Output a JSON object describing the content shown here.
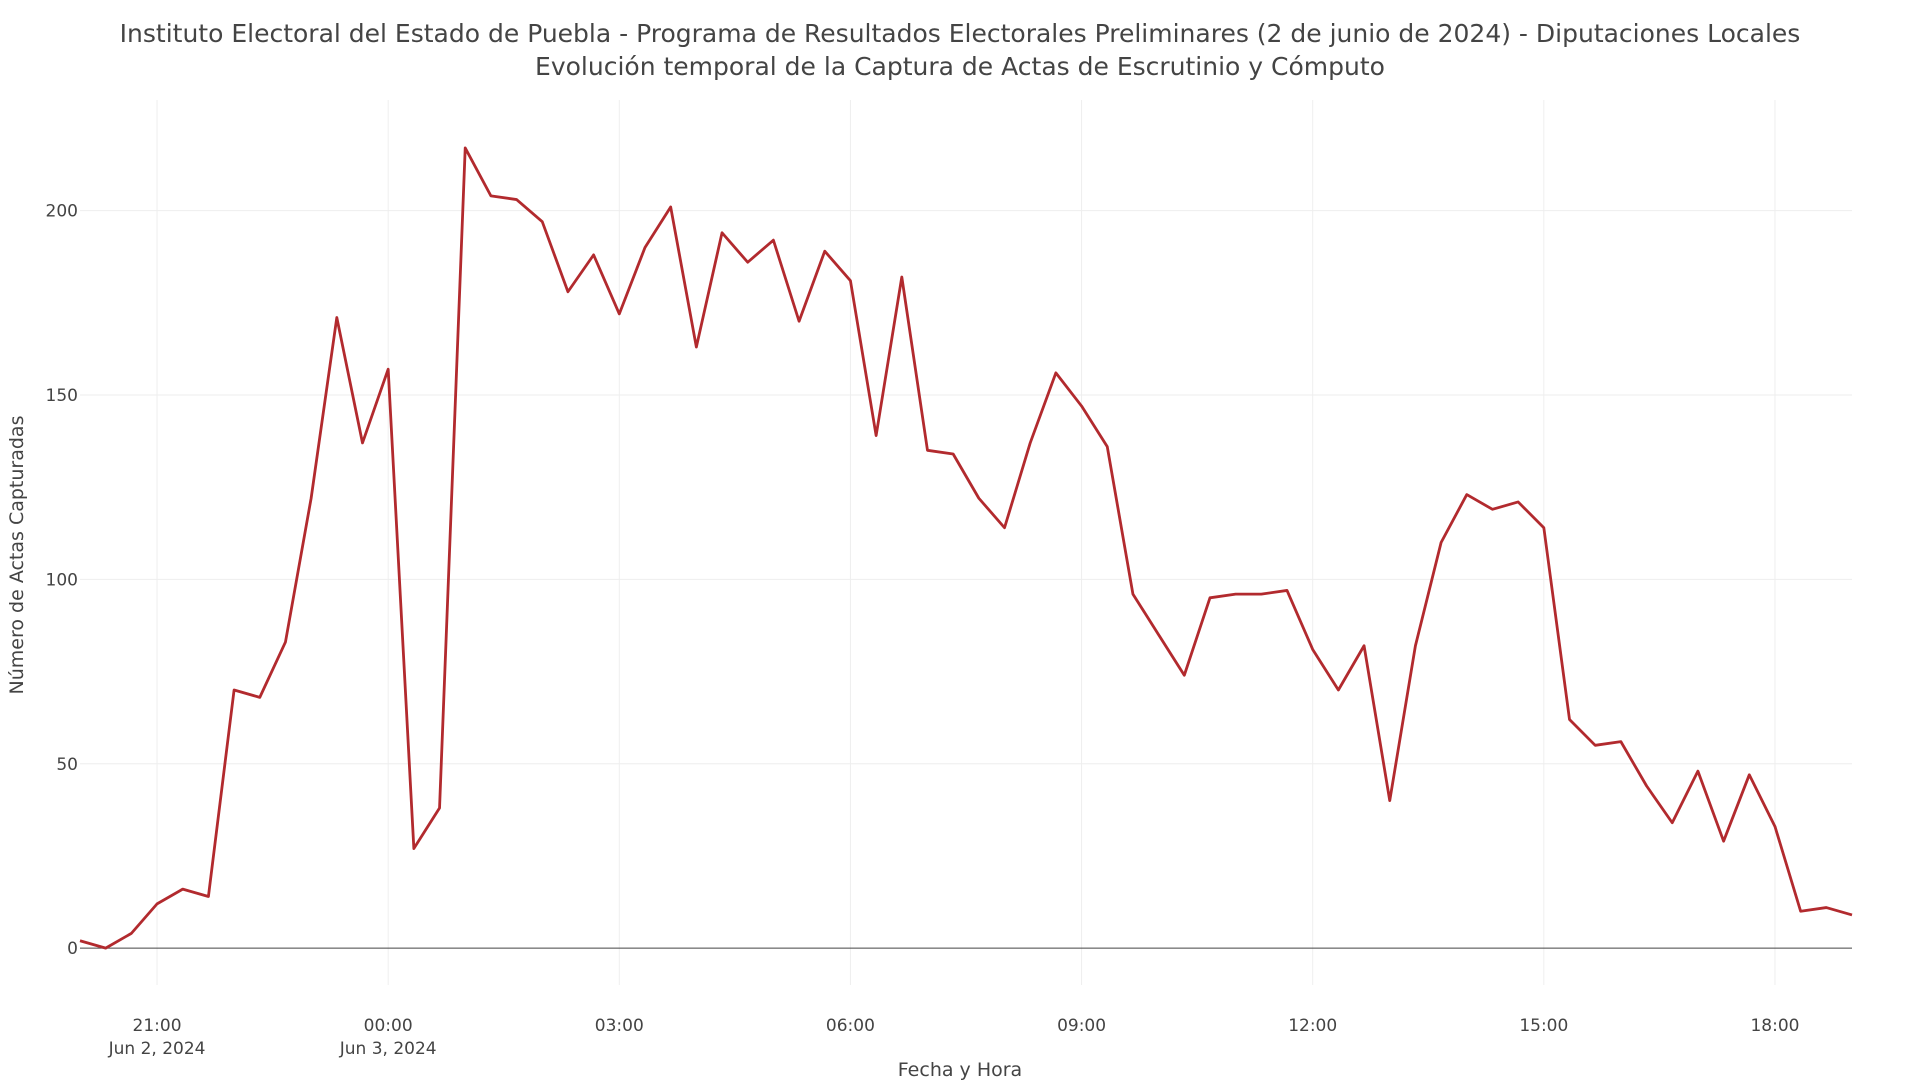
{
  "chart_data": {
    "type": "line",
    "title_lines": [
      "Instituto Electoral del Estado de Puebla - Programa de Resultados Electorales Preliminares (2 de junio de 2024) - Diputaciones Locales",
      "Evolución temporal de la Captura de Actas de Escrutinio y Cómputo"
    ],
    "xlabel": "Fecha y Hora",
    "ylabel": "Número de Actas Capturadas",
    "xlim": [
      "2024-06-02 20:00",
      "2024-06-03 19:00"
    ],
    "ylim": [
      -10,
      230
    ],
    "grid": true,
    "line_color": "#b22a2e",
    "x_ticks": [
      {
        "value": "2024-06-02 21:00",
        "label": "21:00",
        "sublabel": "Jun 2, 2024"
      },
      {
        "value": "2024-06-03 00:00",
        "label": "00:00",
        "sublabel": "Jun 3, 2024"
      },
      {
        "value": "2024-06-03 03:00",
        "label": "03:00",
        "sublabel": ""
      },
      {
        "value": "2024-06-03 06:00",
        "label": "06:00",
        "sublabel": ""
      },
      {
        "value": "2024-06-03 09:00",
        "label": "09:00",
        "sublabel": ""
      },
      {
        "value": "2024-06-03 12:00",
        "label": "12:00",
        "sublabel": ""
      },
      {
        "value": "2024-06-03 15:00",
        "label": "15:00",
        "sublabel": ""
      },
      {
        "value": "2024-06-03 18:00",
        "label": "18:00",
        "sublabel": ""
      }
    ],
    "y_ticks": [
      0,
      50,
      100,
      150,
      200
    ],
    "series": [
      {
        "x": [
          "2024-06-02 20:00",
          "2024-06-02 20:20",
          "2024-06-02 20:40",
          "2024-06-02 21:00",
          "2024-06-02 21:20",
          "2024-06-02 21:40",
          "2024-06-02 22:00",
          "2024-06-02 22:20",
          "2024-06-02 22:40",
          "2024-06-02 23:00",
          "2024-06-02 23:20",
          "2024-06-02 23:40",
          "2024-06-03 00:00",
          "2024-06-03 00:20",
          "2024-06-03 00:40",
          "2024-06-03 01:00",
          "2024-06-03 01:20",
          "2024-06-03 01:40",
          "2024-06-03 02:00",
          "2024-06-03 02:20",
          "2024-06-03 02:40",
          "2024-06-03 03:00",
          "2024-06-03 03:20",
          "2024-06-03 03:40",
          "2024-06-03 04:00",
          "2024-06-03 04:20",
          "2024-06-03 04:40",
          "2024-06-03 05:00",
          "2024-06-03 05:20",
          "2024-06-03 05:40",
          "2024-06-03 06:00",
          "2024-06-03 06:20",
          "2024-06-03 06:40",
          "2024-06-03 07:00",
          "2024-06-03 07:20",
          "2024-06-03 07:40",
          "2024-06-03 08:00",
          "2024-06-03 08:20",
          "2024-06-03 08:40",
          "2024-06-03 09:00",
          "2024-06-03 09:20",
          "2024-06-03 09:40",
          "2024-06-03 10:00",
          "2024-06-03 10:20",
          "2024-06-03 10:40",
          "2024-06-03 11:00",
          "2024-06-03 11:20",
          "2024-06-03 11:40",
          "2024-06-03 12:00",
          "2024-06-03 12:20",
          "2024-06-03 12:40",
          "2024-06-03 13:00",
          "2024-06-03 13:20",
          "2024-06-03 13:40",
          "2024-06-03 14:00",
          "2024-06-03 14:20",
          "2024-06-03 14:40",
          "2024-06-03 15:00",
          "2024-06-03 15:20",
          "2024-06-03 15:40",
          "2024-06-03 16:00",
          "2024-06-03 16:20",
          "2024-06-03 16:40",
          "2024-06-03 17:00",
          "2024-06-03 17:20",
          "2024-06-03 17:40",
          "2024-06-03 18:00",
          "2024-06-03 18:20",
          "2024-06-03 18:40",
          "2024-06-03 19:00"
        ],
        "y": [
          2,
          0,
          4,
          12,
          16,
          14,
          70,
          68,
          83,
          122,
          171,
          137,
          157,
          27,
          38,
          217,
          204,
          203,
          197,
          178,
          188,
          172,
          190,
          201,
          163,
          194,
          186,
          192,
          170,
          189,
          181,
          139,
          182,
          135,
          134,
          122,
          114,
          137,
          156,
          147,
          136,
          96,
          85,
          74,
          95,
          96,
          96,
          97,
          81,
          70,
          82,
          40,
          82,
          110,
          123,
          119,
          121,
          114,
          62,
          55,
          56,
          44,
          34,
          48,
          29,
          47,
          33,
          10,
          11,
          9
        ]
      }
    ]
  }
}
